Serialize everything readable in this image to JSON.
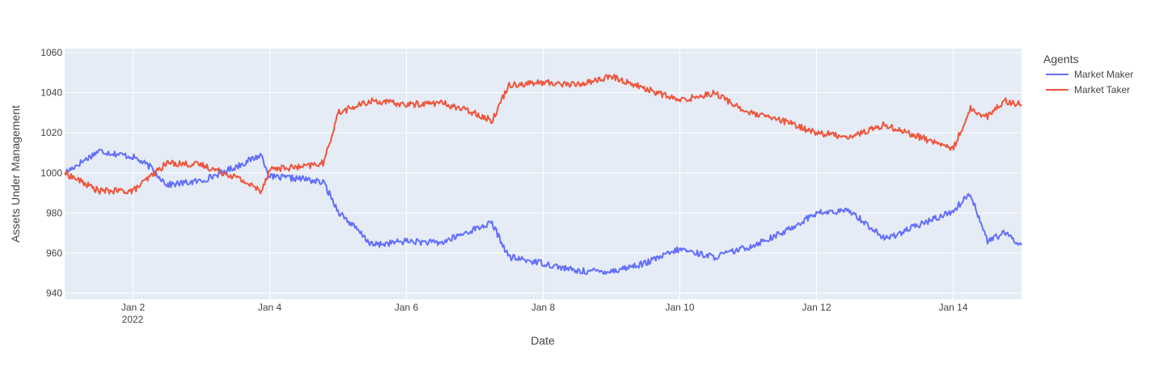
{
  "chart_data": {
    "type": "line",
    "title": "",
    "xlabel": "Date",
    "ylabel": "Assets Under Management",
    "x_tick_labels": [
      "Jan 2",
      "Jan 4",
      "Jan 6",
      "Jan 8",
      "Jan 10",
      "Jan 12",
      "Jan 14"
    ],
    "x_tick_year": "2022",
    "xlim": [
      "2022-01-01",
      "2022-01-15"
    ],
    "ylim": [
      937,
      1062
    ],
    "y_ticks": [
      940,
      960,
      980,
      1000,
      1020,
      1040,
      1060
    ],
    "grid": true,
    "legend": {
      "title": "Agents",
      "position": "right"
    },
    "series": [
      {
        "name": "Market Maker",
        "color": "#636efa",
        "x": [
          "2022-01-01 00:00",
          "2022-01-01 12:00",
          "2022-01-02 00:00",
          "2022-01-02 06:00",
          "2022-01-02 12:00",
          "2022-01-03 00:00",
          "2022-01-03 12:00",
          "2022-01-03 21:00",
          "2022-01-04 00:00",
          "2022-01-04 12:00",
          "2022-01-04 19:00",
          "2022-01-05 00:00",
          "2022-01-05 12:00",
          "2022-01-06 00:00",
          "2022-01-06 12:00",
          "2022-01-07 00:00",
          "2022-01-07 06:00",
          "2022-01-07 12:00",
          "2022-01-08 00:00",
          "2022-01-08 12:00",
          "2022-01-09 00:00",
          "2022-01-09 12:00",
          "2022-01-10 00:00",
          "2022-01-10 12:00",
          "2022-01-11 00:00",
          "2022-01-11 12:00",
          "2022-01-12 00:00",
          "2022-01-12 12:00",
          "2022-01-13 00:00",
          "2022-01-13 12:00",
          "2022-01-14 00:00",
          "2022-01-14 06:00",
          "2022-01-14 12:00",
          "2022-01-14 18:00",
          "2022-01-15 00:00"
        ],
        "y": [
          1000,
          1011,
          1008,
          1003,
          994,
          996,
          1003,
          1009,
          998,
          997,
          995,
          981,
          964,
          966,
          965,
          972,
          975,
          958,
          955,
          951,
          951,
          955,
          962,
          958,
          963,
          970,
          980,
          981,
          967,
          974,
          981,
          990,
          966,
          970,
          964
        ]
      },
      {
        "name": "Market Taker",
        "color": "#ef553b",
        "x": [
          "2022-01-01 00:00",
          "2022-01-01 12:00",
          "2022-01-02 00:00",
          "2022-01-02 06:00",
          "2022-01-02 12:00",
          "2022-01-03 00:00",
          "2022-01-03 12:00",
          "2022-01-03 21:00",
          "2022-01-04 00:00",
          "2022-01-04 12:00",
          "2022-01-04 19:00",
          "2022-01-05 00:00",
          "2022-01-05 12:00",
          "2022-01-06 00:00",
          "2022-01-06 12:00",
          "2022-01-07 00:00",
          "2022-01-07 06:00",
          "2022-01-07 12:00",
          "2022-01-08 00:00",
          "2022-01-08 12:00",
          "2022-01-09 00:00",
          "2022-01-09 12:00",
          "2022-01-10 00:00",
          "2022-01-10 12:00",
          "2022-01-11 00:00",
          "2022-01-11 12:00",
          "2022-01-12 00:00",
          "2022-01-12 12:00",
          "2022-01-13 00:00",
          "2022-01-13 12:00",
          "2022-01-14 00:00",
          "2022-01-14 06:00",
          "2022-01-14 12:00",
          "2022-01-14 18:00",
          "2022-01-15 00:00"
        ],
        "y": [
          1000,
          991,
          991,
          998,
          1005,
          1004,
          998,
          991,
          1002,
          1003,
          1005,
          1030,
          1036,
          1034,
          1035,
          1030,
          1026,
          1044,
          1045,
          1044,
          1048,
          1042,
          1036,
          1040,
          1030,
          1026,
          1020,
          1018,
          1024,
          1018,
          1012,
          1032,
          1028,
          1036,
          1034
        ]
      }
    ]
  }
}
